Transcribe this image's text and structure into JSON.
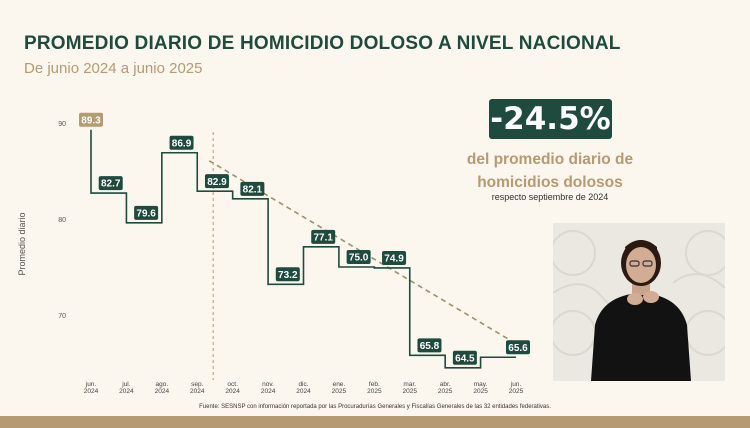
{
  "header": {
    "title": "PROMEDIO DIARIO DE HOMICIDIO DOLOSO A NIVEL NACIONAL",
    "subtitle": "De junio 2024 a junio 2025"
  },
  "highlight": {
    "value": "-24.5%",
    "headline_line1": "del promedio diario de",
    "headline_line2": "homicidios dolosos",
    "note": "respecto septiembre de 2024"
  },
  "footer": {
    "source": "Fuente: SESNSP con información reportada por las Procuradurías Generales y Fiscalías Generales de las 32 entidades federativas."
  },
  "colors": {
    "primary": "#1f4b3f",
    "accent": "#b59a72",
    "background": "#fbf7ee"
  },
  "chart_data": {
    "type": "line",
    "step": true,
    "ylabel": "Promedio diario",
    "yticks": [
      90,
      80,
      70
    ],
    "ylim": [
      63.5,
      93.5
    ],
    "x_labels": [
      {
        "month": "jun.",
        "year": "2024"
      },
      {
        "month": "jul.",
        "year": "2024"
      },
      {
        "month": "ago.",
        "year": "2024"
      },
      {
        "month": "sep.",
        "year": "2024"
      },
      {
        "month": "oct.",
        "year": "2024"
      },
      {
        "month": "nov.",
        "year": "2024"
      },
      {
        "month": "dic.",
        "year": "2024"
      },
      {
        "month": "ene.",
        "year": "2025"
      },
      {
        "month": "feb.",
        "year": "2025"
      },
      {
        "month": "mar.",
        "year": "2025"
      },
      {
        "month": "abr.",
        "year": "2025"
      },
      {
        "month": "may.",
        "year": "2025"
      },
      {
        "month": "jun.",
        "year": "2025"
      }
    ],
    "values": [
      89.3,
      82.7,
      79.6,
      86.9,
      82.9,
      82.1,
      73.2,
      77.1,
      75.0,
      74.9,
      65.8,
      64.5,
      65.6
    ],
    "data_labels": [
      "89.3",
      "82.7",
      "79.6",
      "86.9",
      "82.9",
      "82.1",
      "73.2",
      "77.1",
      "75.0",
      "74.9",
      "65.8",
      "64.5",
      "65.6"
    ],
    "reference_line_at_category": 3,
    "trend_line": {
      "from_category": 3,
      "to_category": 12
    },
    "grid": false,
    "legend": "none"
  }
}
